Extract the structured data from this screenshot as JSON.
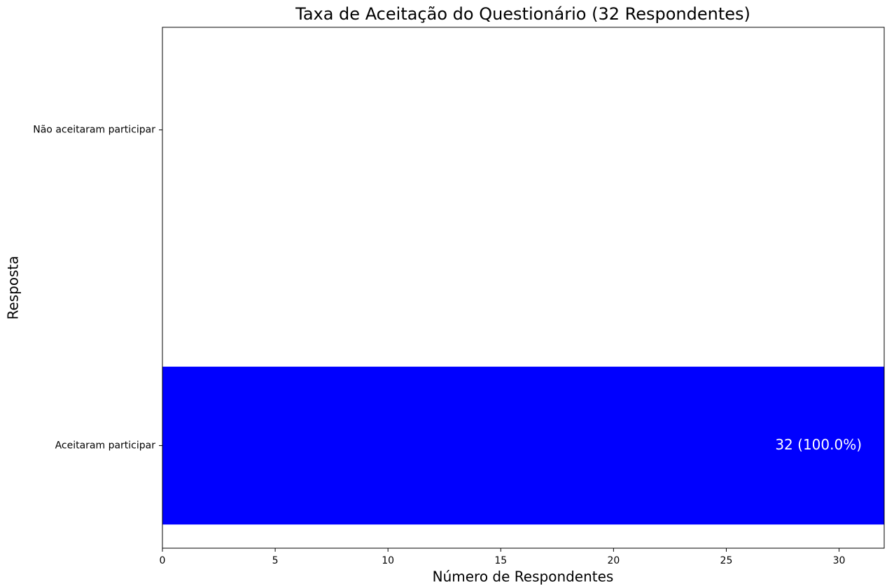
{
  "chart_data": {
    "type": "barh",
    "title": "Taxa de Aceitação do Questionário (32 Respondentes)",
    "xlabel": "Número de Respondentes",
    "ylabel": "Resposta",
    "categories": [
      "Aceitaram participar",
      "Não aceitaram participar"
    ],
    "values": [
      32,
      0
    ],
    "value_labels": [
      "32 (100.0%)",
      null
    ],
    "color": "#0000ff",
    "xlim": [
      0,
      32
    ],
    "xticks": [
      0,
      5,
      10,
      15,
      20,
      25,
      30
    ],
    "grid": false
  }
}
